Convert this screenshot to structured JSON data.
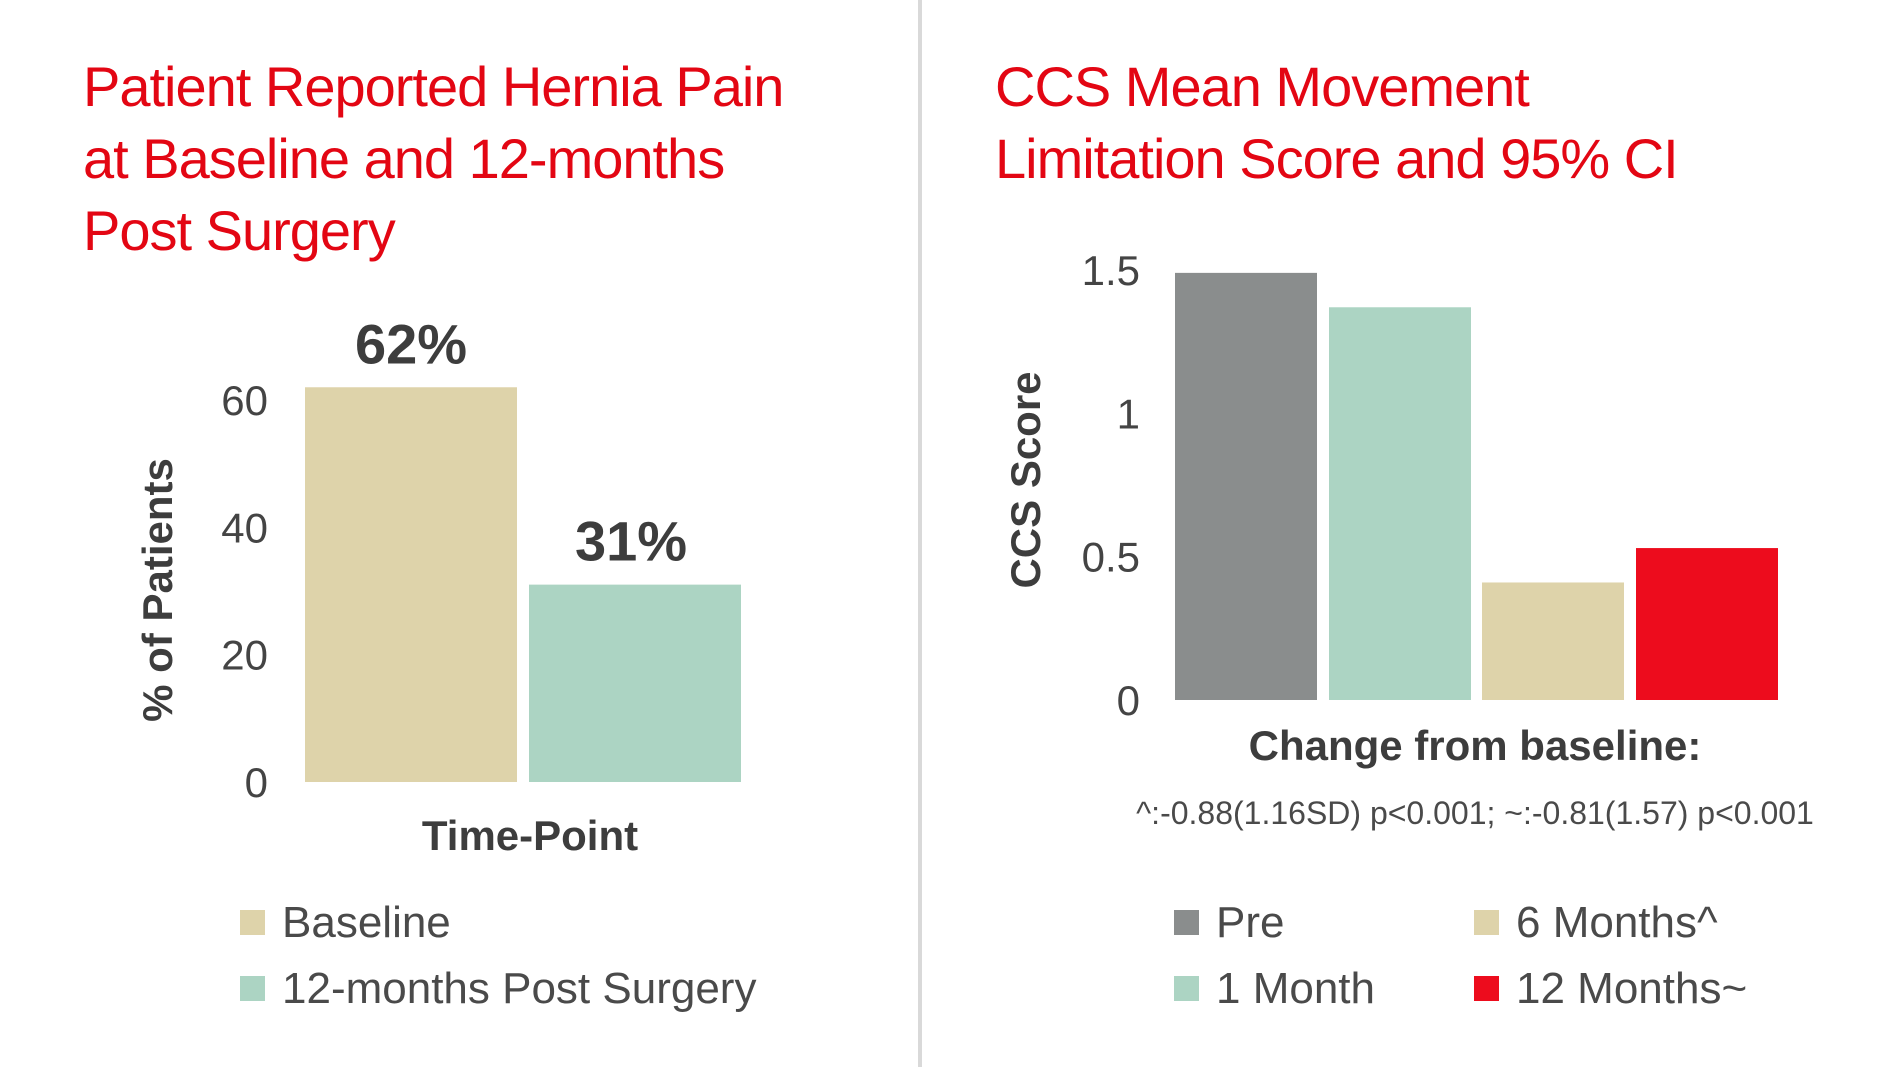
{
  "chart_data": [
    {
      "type": "bar",
      "title": "Patient Reported Hernia Pain at Baseline and 12-months Post Surgery",
      "title_lines": [
        "Patient Reported Hernia Pain",
        "at Baseline and 12-months",
        "Post Surgery"
      ],
      "xlabel": "Time-Point",
      "ylabel": "% of Patients",
      "ylim": [
        0,
        60
      ],
      "yticks": [
        "0",
        "20",
        "40",
        "60"
      ],
      "ytick_values": [
        0,
        20,
        40,
        60
      ],
      "grid": false,
      "legend_position": "bottom",
      "series": [
        {
          "name": "Baseline",
          "value": 62,
          "label": "62%",
          "color": "#ded3aa"
        },
        {
          "name": "12-months Post Surgery",
          "value": 31,
          "label": "31%",
          "color": "#acd4c3"
        }
      ]
    },
    {
      "type": "bar",
      "title": "CCS Mean Movement Limitation Score and 95% CI",
      "title_lines": [
        "CCS Mean Movement",
        "Limitation Score and 95% CI"
      ],
      "xlabel": "Change from baseline:",
      "note": "^:-0.88(1.16SD) p<0.001; ~:-0.81(1.57) p<0.001",
      "ylabel": "CCS Score",
      "ylim": [
        0,
        1.5
      ],
      "yticks": [
        "0",
        "0.5",
        "1",
        "1.5"
      ],
      "ytick_values": [
        0,
        0.5,
        1,
        1.5
      ],
      "grid": false,
      "legend_position": "bottom",
      "series": [
        {
          "name": "Pre",
          "value": 1.49,
          "color": "#8a8d8d"
        },
        {
          "name": "1 Month",
          "value": 1.37,
          "color": "#acd4c3"
        },
        {
          "name": "6 Months^",
          "value": 0.41,
          "color": "#ded3aa"
        },
        {
          "name": "12 Months~",
          "value": 0.53,
          "color": "#ed0c1d"
        }
      ]
    }
  ]
}
